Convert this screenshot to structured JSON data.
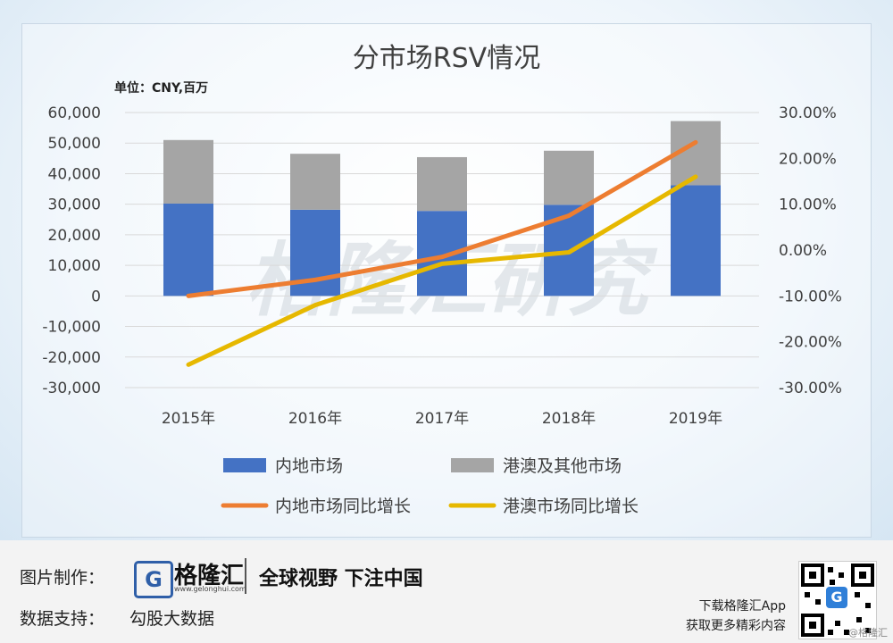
{
  "chart_data": {
    "type": "bar",
    "stacked": true,
    "title": "分市场RSV情况",
    "unit_label": "单位：CNY,百万",
    "categories": [
      "2015年",
      "2016年",
      "2017年",
      "2018年",
      "2019年"
    ],
    "series": [
      {
        "name": "内地市场",
        "kind": "bar",
        "axis": "left",
        "color": "#4472c4",
        "values": [
          30200,
          28200,
          27800,
          29800,
          36200
        ]
      },
      {
        "name": "港澳及其他市场",
        "kind": "bar",
        "axis": "left",
        "color": "#a5a5a5",
        "values": [
          20800,
          18300,
          17600,
          17700,
          21000
        ]
      },
      {
        "name": "内地市场同比增长",
        "kind": "line",
        "axis": "right",
        "color": "#ed7d31",
        "values": [
          -10.0,
          -6.5,
          -1.5,
          7.5,
          23.5
        ]
      },
      {
        "name": "港澳市场同比增长",
        "kind": "line",
        "axis": "right",
        "color": "#e6b800",
        "values": [
          -25.0,
          -12.0,
          -3.0,
          -0.5,
          16.0
        ]
      }
    ],
    "y_left": {
      "min": -30000,
      "max": 60000,
      "step": 10000,
      "tick_labels": [
        "60,000",
        "50,000",
        "40,000",
        "30,000",
        "20,000",
        "10,000",
        "0",
        "-10,000",
        "-20,000",
        "-30,000"
      ]
    },
    "y_right": {
      "min": -30,
      "max": 30,
      "step": 10,
      "tick_labels": [
        "30.00%",
        "20.00%",
        "10.00%",
        "0.00%",
        "-10.00%",
        "-20.00%",
        "-30.00%"
      ]
    },
    "legend_position": "bottom",
    "gridlines": true
  },
  "watermark": "格隆汇研究",
  "footer": {
    "made_by_label": "图片制作：",
    "brand_icon": "G",
    "brand_name": "格隆汇",
    "brand_url": "www.gelonghui.com",
    "slogan": "全球视野 下注中国",
    "data_support_label": "数据支持：",
    "data_source": "勾股大数据",
    "app_line1": "下载格隆汇App",
    "app_line2": "获取更多精彩内容",
    "qr_center": "G",
    "corner_mark": "@格隆汇"
  }
}
